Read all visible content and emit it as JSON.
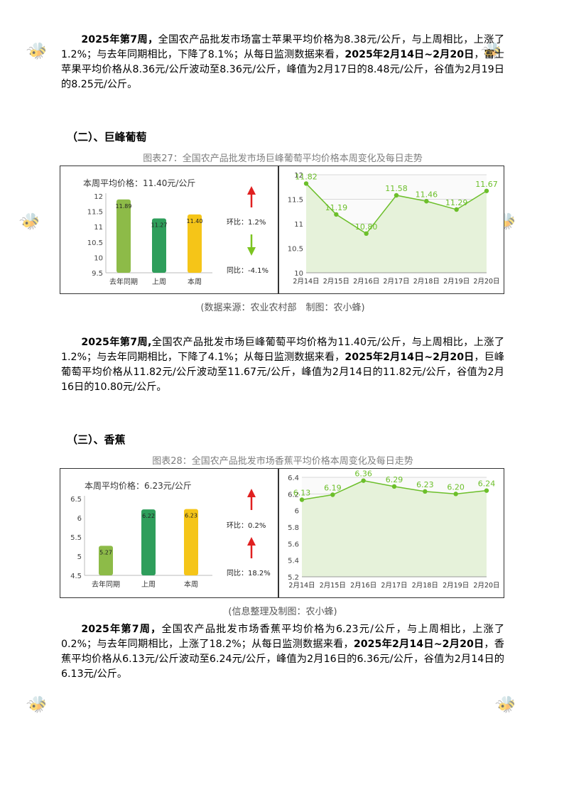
{
  "apple_paragraph": {
    "lead": "2025年第7周，",
    "t1": "全国农产品批发市场富士苹果平均价格为8.38元/公斤，与上周相比，上涨了1.2%；与去年同期相比，下降了8.1%；从每日监测数据来看，",
    "range": "2025年2月14日~2月20日",
    "t2": "，富士苹果平均价格从8.36元/公斤波动至8.36元/公斤，峰值为2月17日的8.48元/公斤，谷值为2月19日的8.25元/公斤。"
  },
  "grape": {
    "section_title": "（二）、巨峰葡萄",
    "figure_caption": "图表27：全国农产品批发市场巨峰葡萄平均价格本周变化及每日走势",
    "weekly_label": "本周平均价格：11.40元/公斤",
    "mom_label": "环比：1.2%",
    "yoy_label": "同比：-4.1%",
    "mom_direction": "up",
    "yoy_direction": "down",
    "source": "(数据来源：农业农村部　制图：农小蜂)",
    "paragraph": {
      "lead": "2025年第7周,",
      "t1": "全国农产品批发市场巨峰葡萄平均价格为11.40元/公斤，与上周相比，上涨了1.2%；与去年同期相比，下降了4.1%；从每日监测数据来看，",
      "range": "2025年2月14日~2月20日",
      "t2": "，巨峰葡萄平均价格从11.82元/公斤波动至11.67元/公斤，峰值为2月14日的11.82元/公斤，谷值为2月16日的10.80元/公斤。"
    }
  },
  "banana": {
    "section_title": "（三）、香蕉",
    "figure_caption": "图表28：全国农产品批发市场香蕉平均价格本周变化及每日走势",
    "weekly_label": "本周平均价格：6.23元/公斤",
    "mom_label": "环比：0.2%",
    "yoy_label": "同比：18.2%",
    "mom_direction": "up",
    "yoy_direction": "up",
    "source": "(信息整理及制图：农小蜂)",
    "paragraph": {
      "lead": "2025年第7周，",
      "t1": "全国农产品批发市场香蕉平均价格为6.23元/公斤，与上周相比，上涨了0.2%；与去年同期相比，上涨了18.2%；从每日监测数据来看，",
      "range": "2025年2月14日~2月20日",
      "t2": "，香蕉平均价格从6.13元/公斤波动至6.24元/公斤，峰值为2月16日的6.36元/公斤，谷值为2月14日的6.13元/公斤。"
    }
  },
  "colors": {
    "bar_last_year": "#8dbb48",
    "bar_last_week": "#2e9e5b",
    "bar_this_week": "#f5c518",
    "line": "#6cbf2a",
    "area": "#e6f2da",
    "arrow_up": "#e02020",
    "arrow_down": "#7cc420"
  },
  "watermark_text": "农小蜂 BEEDATA",
  "chart_data": [
    {
      "type": "bar",
      "categories": [
        "去年同期",
        "上周",
        "本周"
      ],
      "values": [
        11.89,
        11.27,
        11.4
      ],
      "ylim": [
        9.5,
        12
      ],
      "yticks": [
        9.5,
        10,
        10.5,
        11,
        11.5,
        12
      ],
      "tick_labels": [
        "9.5",
        "10",
        "10.5",
        "11",
        "11.5",
        "12"
      ],
      "value_labels": [
        "11.89",
        "11.27",
        "11.40"
      ]
    },
    {
      "type": "line",
      "categories": [
        "2月14日",
        "2月15日",
        "2月16日",
        "2月17日",
        "2月18日",
        "2月19日",
        "2月20日"
      ],
      "values": [
        11.82,
        11.19,
        10.8,
        11.58,
        11.46,
        11.29,
        11.67
      ],
      "value_labels": [
        "11.82",
        "11.19",
        "10.80",
        "11.58",
        "11.46",
        "11.29",
        "11.67"
      ],
      "ylim": [
        10,
        12
      ],
      "yticks": [
        10,
        10.5,
        11,
        11.5,
        12
      ],
      "tick_labels": [
        "10",
        "10.5",
        "11",
        "11.5",
        "12"
      ]
    },
    {
      "type": "bar",
      "categories": [
        "去年同期",
        "上周",
        "本周"
      ],
      "values": [
        5.27,
        6.22,
        6.23
      ],
      "ylim": [
        4.5,
        6.5
      ],
      "yticks": [
        4.5,
        5,
        5.5,
        6,
        6.5
      ],
      "tick_labels": [
        "4.5",
        "5",
        "5.5",
        "6",
        "6.5"
      ],
      "value_labels": [
        "5.27",
        "6.22",
        "6.23"
      ]
    },
    {
      "type": "line",
      "categories": [
        "2月14日",
        "2月15日",
        "2月16日",
        "2月17日",
        "2月18日",
        "2月19日",
        "2月20日"
      ],
      "values": [
        6.13,
        6.19,
        6.36,
        6.29,
        6.23,
        6.2,
        6.24
      ],
      "value_labels": [
        "6.13",
        "6.19",
        "6.36",
        "6.29",
        "6.23",
        "6.20",
        "6.24"
      ],
      "ylim": [
        5.2,
        6.4
      ],
      "yticks": [
        5.2,
        5.4,
        5.6,
        5.8,
        6,
        6.2,
        6.4
      ],
      "tick_labels": [
        "5.2",
        "5.4",
        "5.6",
        "5.8",
        "6",
        "6.2",
        "6.4"
      ]
    }
  ]
}
